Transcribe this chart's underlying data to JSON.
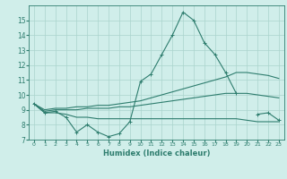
{
  "x": [
    0,
    1,
    2,
    3,
    4,
    5,
    6,
    7,
    8,
    9,
    10,
    11,
    12,
    13,
    14,
    15,
    16,
    17,
    18,
    19,
    20,
    21,
    22,
    23
  ],
  "line_jagged": [
    9.4,
    8.8,
    8.9,
    8.5,
    7.5,
    8.0,
    7.5,
    7.2,
    7.4,
    8.2,
    10.9,
    11.4,
    12.7,
    14.0,
    15.55,
    15.0,
    13.5,
    12.7,
    11.5,
    10.1,
    null,
    8.7,
    8.8,
    8.3
  ],
  "line_upper": [
    9.4,
    9.0,
    9.1,
    9.1,
    9.2,
    9.2,
    9.3,
    9.3,
    9.4,
    9.5,
    9.6,
    9.8,
    10.0,
    10.2,
    10.4,
    10.6,
    10.8,
    11.0,
    11.2,
    11.5,
    11.5,
    11.4,
    11.3,
    11.1
  ],
  "line_mid": [
    9.4,
    8.9,
    9.0,
    9.0,
    9.0,
    9.1,
    9.1,
    9.1,
    9.2,
    9.2,
    9.3,
    9.4,
    9.5,
    9.6,
    9.7,
    9.8,
    9.9,
    10.0,
    10.1,
    10.1,
    10.1,
    10.0,
    9.9,
    9.8
  ],
  "line_flat": [
    9.4,
    8.8,
    8.8,
    8.7,
    8.5,
    8.5,
    8.4,
    8.4,
    8.4,
    8.4,
    8.4,
    8.4,
    8.4,
    8.4,
    8.4,
    8.4,
    8.4,
    8.4,
    8.4,
    8.4,
    8.3,
    8.2,
    8.2,
    8.2
  ],
  "line_color": "#2e7d6e",
  "bg_color": "#d0eeea",
  "grid_color": "#aad4cc",
  "ylim": [
    7,
    16
  ],
  "xlim": [
    -0.5,
    23.5
  ],
  "yticks": [
    7,
    8,
    9,
    10,
    11,
    12,
    13,
    14,
    15
  ],
  "xtick_labels": [
    "0",
    "1",
    "2",
    "3",
    "4",
    "5",
    "6",
    "7",
    "8",
    "9",
    "10",
    "11",
    "12",
    "13",
    "14",
    "15",
    "16",
    "17",
    "18",
    "19",
    "20",
    "21",
    "22",
    "23"
  ],
  "xlabel": "Humidex (Indice chaleur)"
}
